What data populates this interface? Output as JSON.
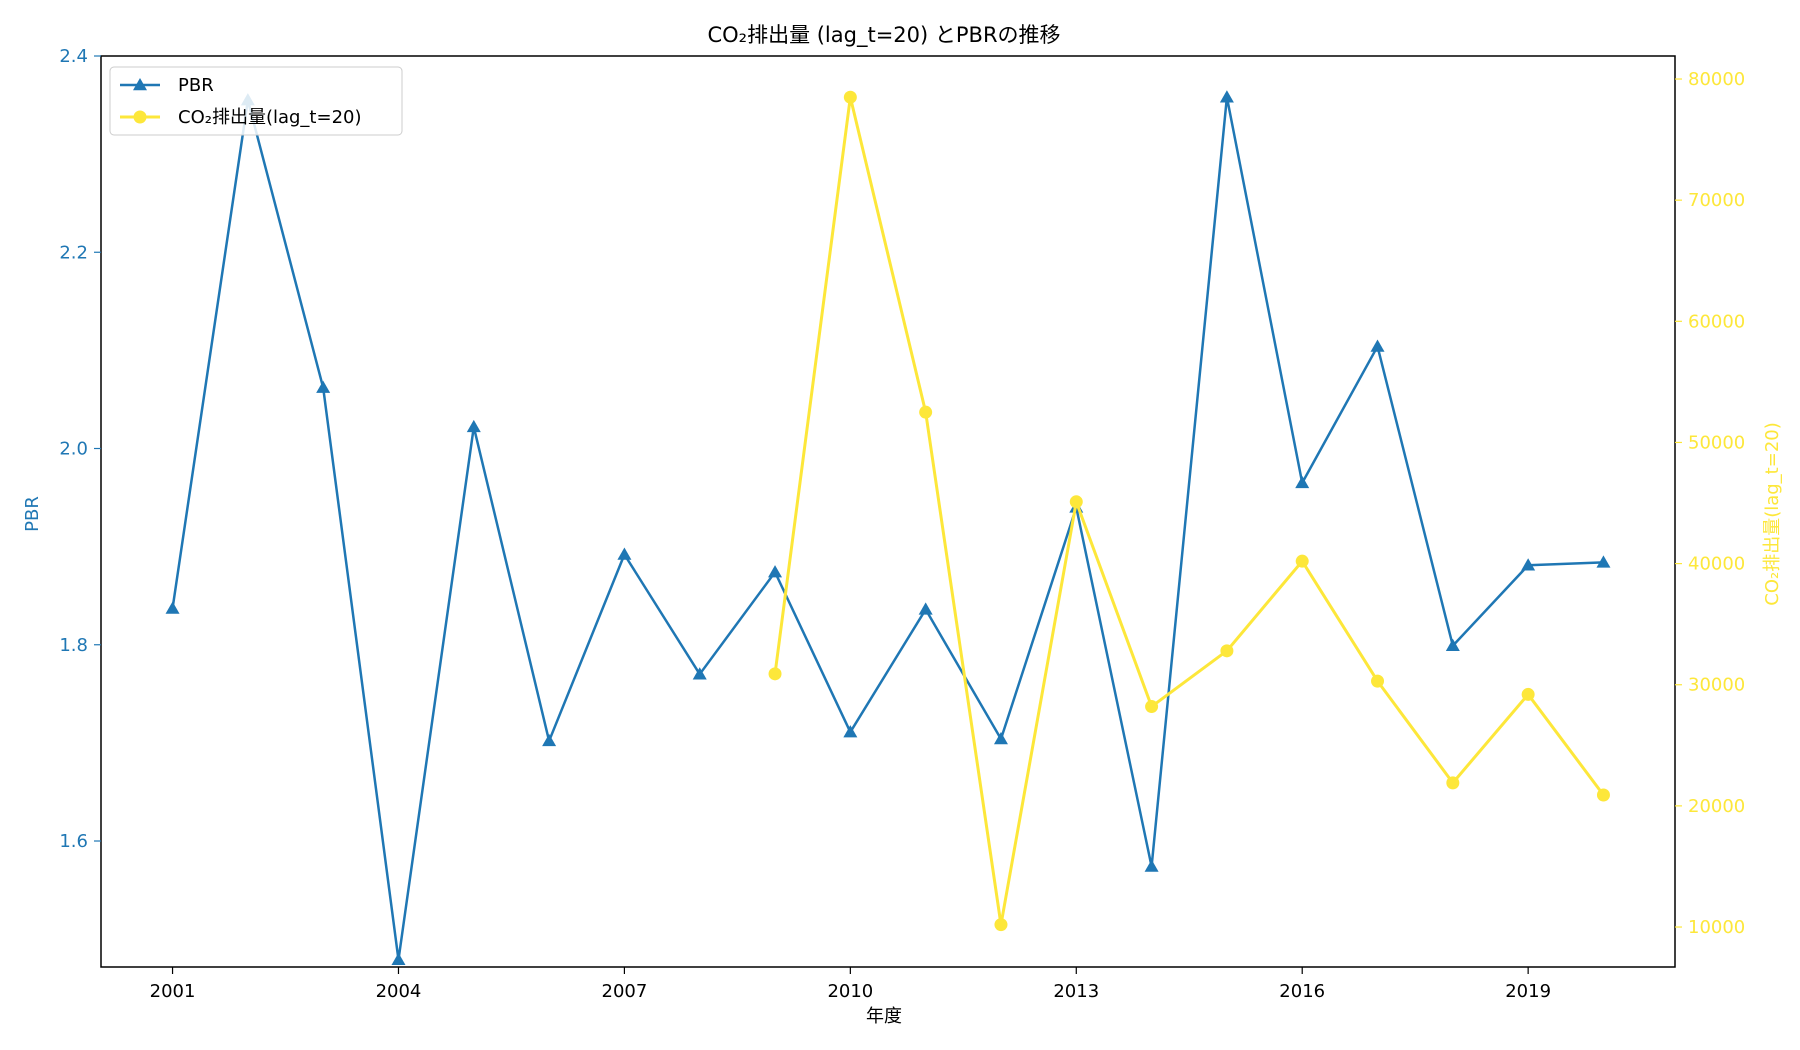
{
  "chart_data": {
    "type": "line",
    "title": "CO₂排出量 (lag_t=20) とPBRの推移",
    "xlabel": "年度",
    "ylabel_left": "PBR",
    "ylabel_right": "CO₂排出量(lag_t=20)",
    "xlim": [
      2000.05,
      2020.95
    ],
    "ylim_left": [
      1.4716,
      2.4
    ],
    "ylim_right": [
      6700,
      81900
    ],
    "x_ticks": [
      2001,
      2004,
      2007,
      2010,
      2013,
      2016,
      2019
    ],
    "y_ticks_left": [
      1.6,
      1.8,
      2.0,
      2.2,
      2.4
    ],
    "y_ticks_right": [
      10000,
      20000,
      30000,
      40000,
      50000,
      60000,
      70000,
      80000
    ],
    "legend_position": "top-left",
    "grid": false,
    "series": [
      {
        "name": "PBR",
        "axis": "left",
        "color": "#1f77b4",
        "marker": "triangle",
        "x": [
          2001,
          2002,
          2003,
          2004,
          2005,
          2006,
          2007,
          2008,
          2009,
          2010,
          2011,
          2012,
          2013,
          2014,
          2015,
          2016,
          2017,
          2018,
          2019,
          2020
        ],
        "values": [
          1.837,
          2.355,
          2.062,
          1.479,
          2.022,
          1.702,
          1.892,
          1.77,
          1.874,
          1.711,
          1.836,
          1.704,
          1.94,
          1.574,
          2.358,
          1.965,
          2.104,
          1.799,
          1.881,
          1.884
        ]
      },
      {
        "name": "CO₂排出量(lag_t=20)",
        "axis": "right",
        "color": "#fde73a",
        "marker": "circle",
        "x": [
          2009,
          2010,
          2011,
          2012,
          2013,
          2014,
          2015,
          2016,
          2017,
          2018,
          2019,
          2020
        ],
        "values": [
          30900,
          78500,
          52500,
          10200,
          45100,
          28200,
          32800,
          40200,
          30300,
          21900,
          29200,
          20900
        ]
      }
    ]
  }
}
